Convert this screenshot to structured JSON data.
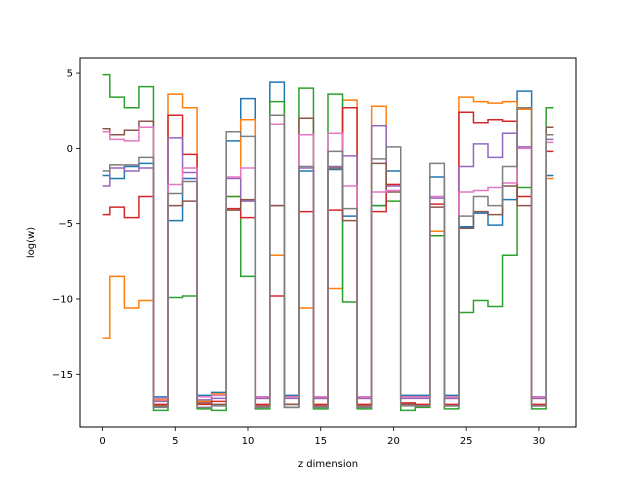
{
  "chart_data": {
    "type": "line",
    "drawstyle": "steps-mid",
    "title": "",
    "xlabel": "z dimension",
    "ylabel": "log(w)",
    "xlim": [
      -1.55,
      32.55
    ],
    "ylim": [
      -18.5,
      6.0
    ],
    "xticks": [
      0,
      5,
      10,
      15,
      20,
      25,
      30
    ],
    "yticks": [
      5,
      0,
      -5,
      -10,
      -15
    ],
    "grid": false,
    "legend": "none",
    "x": [
      0,
      1,
      2,
      3,
      4,
      5,
      6,
      7,
      8,
      9,
      10,
      11,
      12,
      13,
      14,
      15,
      16,
      17,
      18,
      19,
      20,
      21,
      22,
      23,
      24,
      25,
      26,
      27,
      28,
      29,
      30,
      31
    ],
    "series": [
      {
        "color": "#1f77b4",
        "values": [
          -1.8,
          -2.0,
          -1.2,
          -1.0,
          -16.5,
          -4.8,
          -2.0,
          -16.4,
          -16.2,
          0.5,
          3.3,
          -16.5,
          4.4,
          -16.4,
          -1.5,
          -16.5,
          -1.4,
          -4.5,
          -16.5,
          -3.8,
          -1.5,
          -16.4,
          -16.4,
          -1.9,
          -16.4,
          -5.2,
          -4.3,
          -5.1,
          -3.4,
          3.8,
          -16.5,
          -1.8
        ]
      },
      {
        "color": "#ff7f0e",
        "values": [
          -12.6,
          -8.5,
          -10.6,
          -10.1,
          -16.7,
          3.6,
          2.7,
          -16.8,
          -16.3,
          -3.2,
          1.9,
          -16.6,
          -7.1,
          -16.5,
          -10.6,
          -16.6,
          -9.3,
          3.2,
          -16.6,
          2.8,
          -2.4,
          -16.5,
          -16.5,
          -5.5,
          -16.6,
          3.4,
          3.1,
          3.0,
          3.1,
          2.6,
          -16.6,
          -2.0
        ]
      },
      {
        "color": "#2ca02c",
        "values": [
          4.9,
          3.4,
          2.7,
          4.1,
          -17.4,
          -9.9,
          -9.8,
          -17.3,
          -17.4,
          -3.2,
          -8.5,
          -17.3,
          3.1,
          -17.2,
          4.0,
          -17.3,
          3.6,
          -10.2,
          -17.3,
          -3.8,
          -3.5,
          -17.4,
          -17.2,
          -5.8,
          -17.3,
          -10.9,
          -10.1,
          -10.5,
          -7.1,
          -2.6,
          -17.3,
          2.7
        ]
      },
      {
        "color": "#d62728",
        "values": [
          -4.4,
          -3.9,
          -4.6,
          -3.2,
          -17.0,
          2.2,
          -0.4,
          -17.0,
          -16.8,
          -4.0,
          -4.6,
          -17.0,
          -9.8,
          -17.0,
          -4.2,
          -17.0,
          -4.1,
          2.7,
          -17.0,
          -4.2,
          -2.4,
          -16.9,
          -17.0,
          -3.7,
          -17.0,
          2.4,
          1.7,
          1.9,
          1.8,
          -3.2,
          -17.0,
          -0.2
        ]
      },
      {
        "color": "#9467bd",
        "values": [
          -2.5,
          -1.3,
          -1.5,
          -1.3,
          -16.8,
          0.7,
          -1.6,
          -16.7,
          -16.6,
          -2.0,
          -3.5,
          -16.6,
          -3.8,
          -16.6,
          -1.3,
          -16.6,
          -1.2,
          -0.5,
          -16.6,
          1.5,
          -2.5,
          -16.6,
          -16.6,
          -3.3,
          -16.6,
          -1.2,
          0.3,
          -0.6,
          1.0,
          0.1,
          -16.6,
          0.6
        ]
      },
      {
        "color": "#8c564b",
        "values": [
          1.3,
          0.9,
          1.2,
          1.8,
          -17.1,
          -3.8,
          -3.5,
          -16.9,
          -17.0,
          -4.1,
          -3.4,
          -17.1,
          -3.8,
          -17.0,
          2.0,
          -17.1,
          -1.3,
          -4.8,
          -17.1,
          -1.0,
          -2.9,
          -17.0,
          -17.1,
          -3.9,
          -17.1,
          -5.3,
          -4.2,
          -4.4,
          -2.5,
          -3.8,
          -17.1,
          1.4
        ]
      },
      {
        "color": "#e377c2",
        "values": [
          1.1,
          0.6,
          0.5,
          1.4,
          -16.6,
          -2.4,
          -1.3,
          -16.5,
          -16.4,
          -1.9,
          -1.3,
          -16.5,
          1.6,
          -16.5,
          0.9,
          -16.5,
          1.0,
          -2.5,
          -16.5,
          -2.9,
          -2.8,
          -16.5,
          -16.5,
          -3.2,
          -16.5,
          -2.9,
          -2.8,
          -2.6,
          -2.3,
          0.0,
          -16.5,
          0.4
        ]
      },
      {
        "color": "#7f7f7f",
        "values": [
          -1.5,
          -1.1,
          -1.1,
          -0.6,
          -17.2,
          -3.0,
          -2.2,
          -17.2,
          -17.1,
          1.1,
          0.8,
          -17.2,
          2.2,
          -17.2,
          -1.2,
          -17.2,
          -0.2,
          -4.0,
          -17.2,
          -0.7,
          0.1,
          -17.1,
          -17.1,
          -1.0,
          -17.1,
          -4.5,
          -3.2,
          -3.8,
          -1.2,
          2.7,
          -17.1,
          0.9
        ]
      }
    ]
  }
}
